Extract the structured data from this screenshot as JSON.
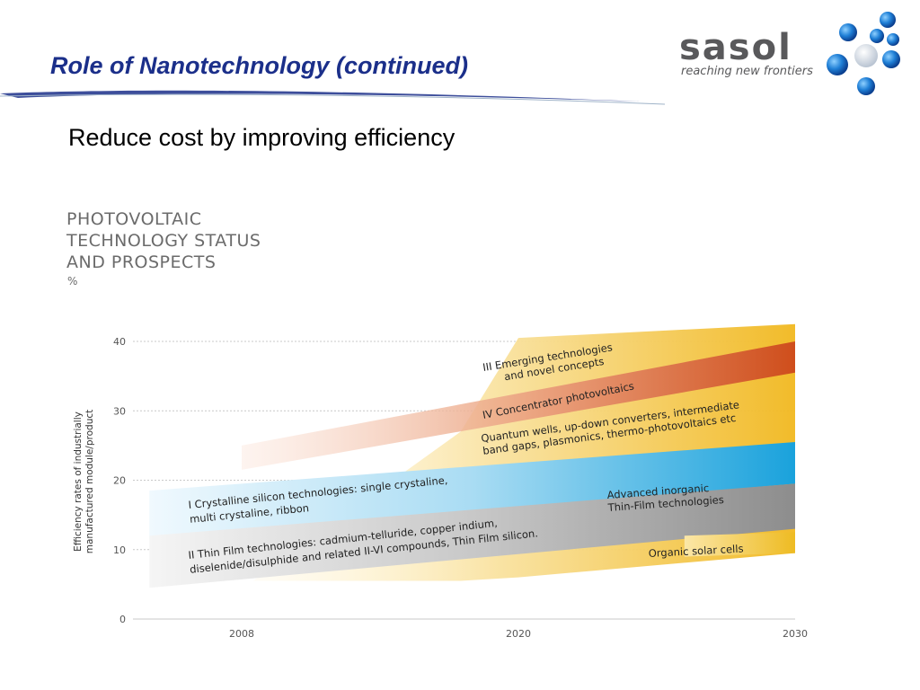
{
  "slide": {
    "title": "Role of Nanotechnology (continued)",
    "subtitle": "Reduce cost by improving efficiency"
  },
  "logo": {
    "wordmark": "sasol",
    "tagline": "reaching new frontiers",
    "icon": "molecule-icon"
  },
  "colors": {
    "title": "#1b2f8a",
    "crystalline": "#39aee0",
    "thin_film": "#9a9a9a",
    "emerging": "#f4c84a",
    "concentrator": "#d9652f"
  },
  "chart_data": {
    "type": "area",
    "title": "PHOTOVOLTAIC\nTECHNOLOGY STATUS\nAND PROSPECTS",
    "unit": "%",
    "ylabel_lines": [
      "Efficiency rates of industrially",
      "manufactured module/product"
    ],
    "xlabel": "",
    "x_ticks": [
      2008,
      2020,
      2030
    ],
    "y_ticks": [
      0,
      10,
      20,
      30,
      40
    ],
    "xlim": [
      2004,
      2030
    ],
    "ylim": [
      0,
      40
    ],
    "grid": "horizontal",
    "series": [
      {
        "id": "emerging",
        "label_lines": [
          "III  Emerging technologies",
          "and novel concepts"
        ],
        "x": [
          2008.5,
          2017.5,
          2020,
          2030
        ],
        "upper": [
          5.5,
          27,
          40.5,
          42.5
        ],
        "lower": [
          5.5,
          5.5,
          6,
          9.5
        ]
      },
      {
        "id": "concentrator",
        "label_lines": [
          "IV  Concentrator photovoltaics"
        ],
        "x": [
          2008,
          2030
        ],
        "upper": [
          25,
          40
        ],
        "lower": [
          21.5,
          35.5
        ]
      },
      {
        "id": "quantum",
        "label_lines": [
          "Quantum wells, up-down converters, intermediate",
          "band gaps, plasmonics, thermo-photovoltaics etc"
        ]
      },
      {
        "id": "crystalline",
        "label_lines": [
          "I     Crystalline silicon technologies: single crystaline,",
          "multi crystaline, ribbon"
        ],
        "x": [
          2004,
          2030
        ],
        "upper": [
          18.5,
          25.5
        ],
        "lower": [
          11.5,
          19.5
        ]
      },
      {
        "id": "thin_film",
        "label_lines": [
          "II   Thin Film technologies: cadmium-telluride, copper indium,",
          "diselenide/disulphide and related II-VI compounds, Thin Film silicon."
        ],
        "x": [
          2004,
          2030
        ],
        "upper": [
          12,
          19.5
        ],
        "lower": [
          4.5,
          13
        ]
      },
      {
        "id": "advanced_inorganic",
        "label_lines": [
          "Advanced inorganic",
          "Thin-Film technologies"
        ]
      },
      {
        "id": "organic",
        "label_lines": [
          "Organic solar cells"
        ],
        "x": [
          2026,
          2030
        ],
        "upper": [
          12,
          12.5
        ],
        "lower": [
          9,
          9.5
        ]
      }
    ]
  }
}
